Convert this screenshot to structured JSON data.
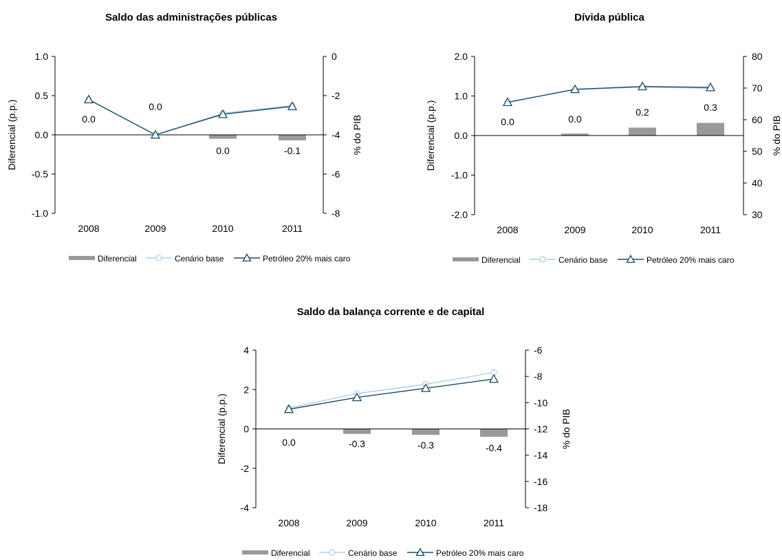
{
  "colors": {
    "bar": "#999999",
    "base_line": "#9cc8ea",
    "oil_line": "#1b4964",
    "axis": "#000000"
  },
  "chart_data": [
    {
      "type": "bar+line",
      "title": "Saldo das administrações públicas",
      "categories": [
        "2008",
        "2009",
        "2010",
        "2011"
      ],
      "left_axis": {
        "label": "Diferencial (p.p.)",
        "range": [
          -1.0,
          1.0
        ],
        "ticks": [
          "1.0",
          "0.5",
          "0.0",
          "-0.5",
          "-1.0"
        ],
        "tick_values": [
          1.0,
          0.5,
          0.0,
          -0.5,
          -1.0
        ]
      },
      "right_axis": {
        "label": "% do PIB",
        "range": [
          -8,
          0
        ],
        "ticks": [
          "0",
          "-2",
          "-4",
          "-6",
          "-8"
        ],
        "tick_values": [
          0,
          -2,
          -4,
          -6,
          -8
        ]
      },
      "series": [
        {
          "name": "Diferencial",
          "kind": "bar",
          "axis": "left",
          "values": [
            0.0,
            0.0,
            -0.05,
            -0.07
          ],
          "labels": [
            "0.0",
            "0.0",
            "0.0",
            "-0.1"
          ]
        },
        {
          "name": "Cenário base",
          "kind": "line",
          "axis": "right",
          "marker": "circle",
          "values": [
            -2.2,
            -4.0,
            -2.9,
            -2.5
          ]
        },
        {
          "name": "Petróleo 20% mais caro",
          "kind": "line",
          "axis": "right",
          "marker": "triangle",
          "values": [
            -2.2,
            -4.0,
            -2.95,
            -2.55
          ]
        }
      ],
      "grid": false,
      "legend_position": "bottom"
    },
    {
      "type": "bar+line",
      "title": "Dívida pública",
      "categories": [
        "2008",
        "2009",
        "2010",
        "2011"
      ],
      "left_axis": {
        "label": "Diferencial (p.p.)",
        "range": [
          -2.0,
          2.0
        ],
        "ticks": [
          "2.0",
          "1.0",
          "0.0",
          "-1.0",
          "-2.0"
        ],
        "tick_values": [
          2.0,
          1.0,
          0.0,
          -1.0,
          -2.0
        ]
      },
      "right_axis": {
        "label": "% do PIB",
        "range": [
          30,
          80
        ],
        "ticks": [
          "80",
          "70",
          "60",
          "50",
          "40",
          "30"
        ],
        "tick_values": [
          80,
          70,
          60,
          50,
          40,
          30
        ]
      },
      "series": [
        {
          "name": "Diferencial",
          "kind": "bar",
          "axis": "left",
          "values": [
            0.0,
            0.05,
            0.2,
            0.32
          ],
          "labels": [
            "0.0",
            "0.0",
            "0.2",
            "0.3"
          ]
        },
        {
          "name": "Cenário base",
          "kind": "line",
          "axis": "right",
          "marker": "circle",
          "values": [
            65.5,
            69.5,
            70.3,
            69.9
          ]
        },
        {
          "name": "Petróleo 20% mais caro",
          "kind": "line",
          "axis": "right",
          "marker": "triangle",
          "values": [
            65.5,
            69.6,
            70.5,
            70.2
          ]
        }
      ],
      "grid": false,
      "legend_position": "bottom"
    },
    {
      "type": "bar+line",
      "title": "Saldo da balança corrente e de capital",
      "categories": [
        "2008",
        "2009",
        "2010",
        "2011"
      ],
      "left_axis": {
        "label": "Diferencial (p.p.)",
        "range": [
          -4,
          4
        ],
        "ticks": [
          "4",
          "2",
          "0",
          "-2",
          "-4"
        ],
        "tick_values": [
          4,
          2,
          0,
          -2,
          -4
        ]
      },
      "right_axis": {
        "label": "% do PIB",
        "range": [
          -18,
          -6
        ],
        "ticks": [
          "-6",
          "-8",
          "-10",
          "-12",
          "-14",
          "-16",
          "-18"
        ],
        "tick_values": [
          -6,
          -8,
          -10,
          -12,
          -14,
          -16,
          -18
        ]
      },
      "series": [
        {
          "name": "Diferencial",
          "kind": "bar",
          "axis": "left",
          "values": [
            0.0,
            -0.25,
            -0.3,
            -0.4
          ],
          "labels": [
            "0.0",
            "-0.3",
            "-0.3",
            "-0.4"
          ]
        },
        {
          "name": "Cenário base",
          "kind": "line",
          "axis": "right",
          "marker": "circle",
          "values": [
            -10.4,
            -9.3,
            -8.6,
            -7.7
          ]
        },
        {
          "name": "Petróleo 20% mais caro",
          "kind": "line",
          "axis": "right",
          "marker": "triangle",
          "values": [
            -10.5,
            -9.6,
            -8.9,
            -8.2
          ]
        }
      ],
      "grid": false,
      "legend_position": "bottom"
    }
  ]
}
